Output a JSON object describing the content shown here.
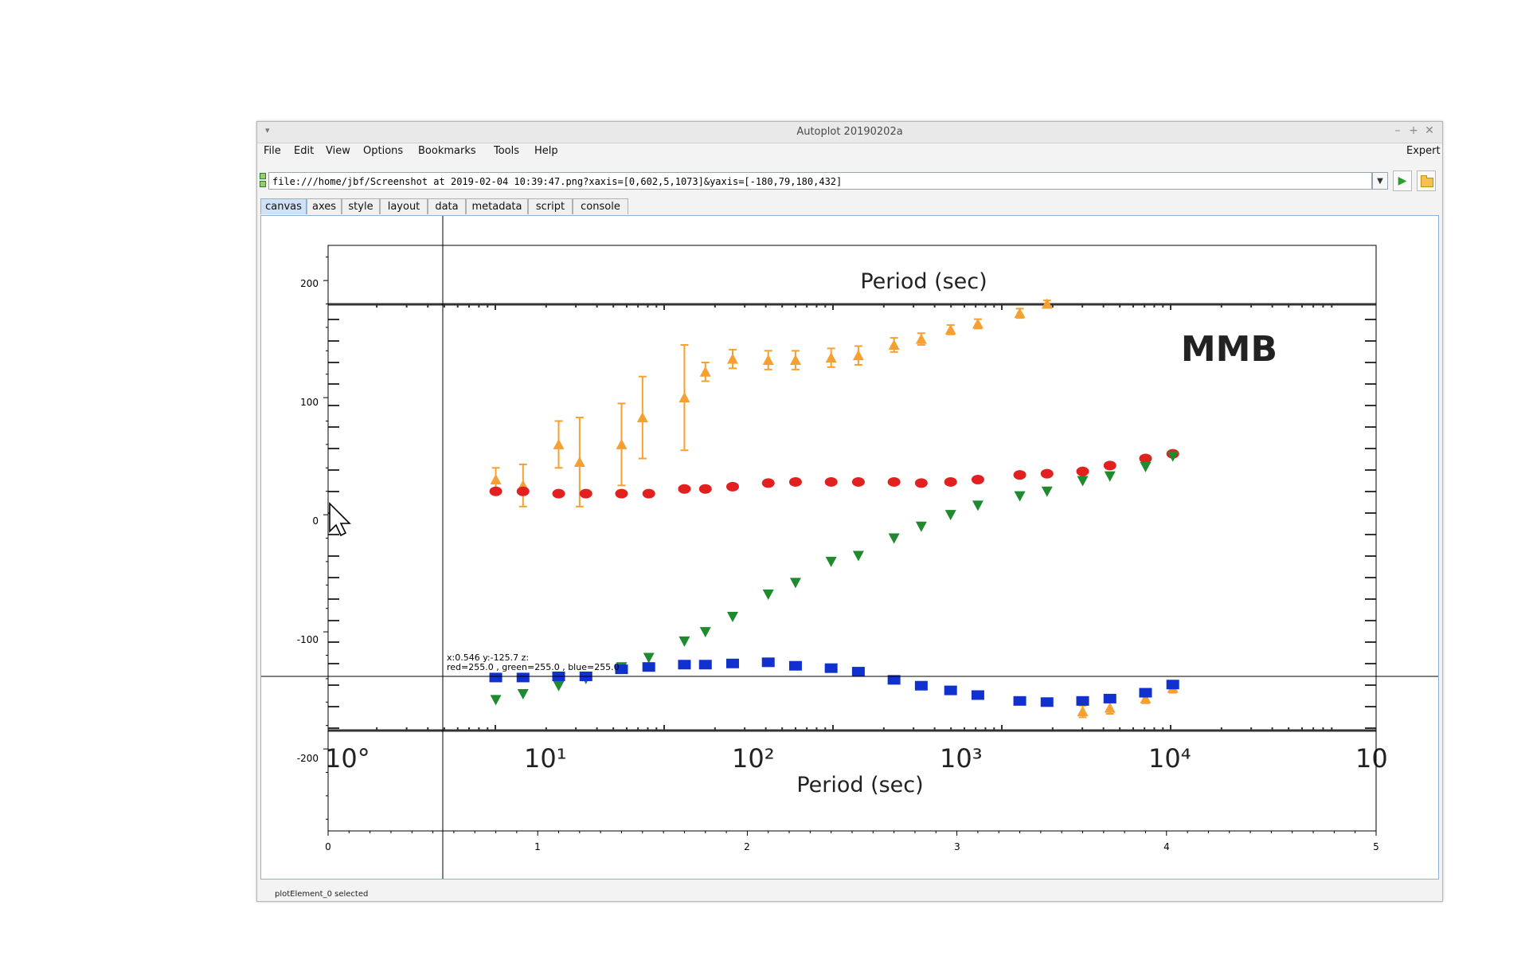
{
  "window": {
    "title": "Autoplot 20190202a",
    "minimize_icon": "minimize-icon",
    "maximize_icon": "maximize-icon",
    "close_icon": "close-icon"
  },
  "menubar": {
    "items": [
      "File",
      "Edit",
      "View",
      "Options",
      "Bookmarks",
      "Tools",
      "Help"
    ],
    "right_item": "Expert"
  },
  "url_bar": {
    "value": "file:///home/jbf/Screenshot at 2019-02-04 10:39:47.png?xaxis=[0,602,5,1073]&yaxis=[-180,79,180,432]",
    "dropdown_icon": "chevron-down-icon",
    "go_icon": "play-icon",
    "browse_icon": "folder-icon"
  },
  "tabs": [
    {
      "label": "canvas",
      "active": true
    },
    {
      "label": "axes",
      "active": false
    },
    {
      "label": "style",
      "active": false
    },
    {
      "label": "layout",
      "active": false
    },
    {
      "label": "data",
      "active": false
    },
    {
      "label": "metadata",
      "active": false
    },
    {
      "label": "script",
      "active": false
    },
    {
      "label": "console",
      "active": false
    }
  ],
  "plot": {
    "x_ticks": [
      "0",
      "1",
      "2",
      "3",
      "4",
      "5"
    ],
    "y_ticks": [
      "200",
      "100",
      "0",
      "-100",
      "-200"
    ],
    "crosshair_readout_line1": "x:0.546  y:-125.7  z:",
    "crosshair_readout_line2": "red=255.0 , green=255.0 , blue=255.0"
  },
  "embedded_image": {
    "top_label": "Period (sec)",
    "bottom_label": "Period (sec)",
    "station": "MMB",
    "x_ticks": [
      "10°",
      "10¹",
      "10²",
      "10³",
      "10⁴",
      "10"
    ],
    "colors": {
      "orange": "#f5a030",
      "red": "#e32020",
      "green": "#1f8a2e",
      "blue": "#1030d0"
    },
    "orange_triangles": [
      [
        0.8,
        30,
        10
      ],
      [
        0.93,
        25,
        18
      ],
      [
        1.1,
        60,
        20
      ],
      [
        1.2,
        45,
        38
      ],
      [
        1.4,
        60,
        35
      ],
      [
        1.5,
        83,
        35
      ],
      [
        1.7,
        100,
        45
      ],
      [
        1.8,
        122,
        8
      ],
      [
        1.93,
        133,
        8
      ],
      [
        2.1,
        132,
        8
      ],
      [
        2.23,
        132,
        8
      ],
      [
        2.4,
        134,
        8
      ],
      [
        2.53,
        136,
        8
      ],
      [
        2.7,
        145,
        6
      ],
      [
        2.83,
        150,
        5
      ],
      [
        2.97,
        158,
        4
      ],
      [
        3.1,
        163,
        4
      ],
      [
        3.3,
        172,
        4
      ],
      [
        3.43,
        180,
        3
      ],
      [
        3.6,
        -168,
        5
      ],
      [
        3.73,
        -165,
        5
      ],
      [
        3.9,
        -157,
        4
      ],
      [
        4.03,
        -148,
        4
      ]
    ],
    "red_circles": [
      [
        0.8,
        20
      ],
      [
        0.93,
        20
      ],
      [
        1.1,
        18
      ],
      [
        1.23,
        18
      ],
      [
        1.4,
        18
      ],
      [
        1.53,
        18
      ],
      [
        1.7,
        22
      ],
      [
        1.8,
        22
      ],
      [
        1.93,
        24
      ],
      [
        2.1,
        27
      ],
      [
        2.23,
        28
      ],
      [
        2.4,
        28
      ],
      [
        2.53,
        28
      ],
      [
        2.7,
        28
      ],
      [
        2.83,
        27
      ],
      [
        2.97,
        28
      ],
      [
        3.1,
        30
      ],
      [
        3.3,
        34
      ],
      [
        3.43,
        35
      ],
      [
        3.6,
        37
      ],
      [
        3.73,
        42
      ],
      [
        3.9,
        48
      ],
      [
        4.03,
        52
      ]
    ],
    "green_triangles": [
      [
        0.8,
        -158
      ],
      [
        0.93,
        -153
      ],
      [
        1.1,
        -146
      ],
      [
        1.23,
        -140
      ],
      [
        1.4,
        -130
      ],
      [
        1.53,
        -122
      ],
      [
        1.7,
        -108
      ],
      [
        1.8,
        -100
      ],
      [
        1.93,
        -87
      ],
      [
        2.1,
        -68
      ],
      [
        2.23,
        -58
      ],
      [
        2.4,
        -40
      ],
      [
        2.53,
        -35
      ],
      [
        2.7,
        -20
      ],
      [
        2.83,
        -10
      ],
      [
        2.97,
        0
      ],
      [
        3.1,
        8
      ],
      [
        3.3,
        16
      ],
      [
        3.43,
        20
      ],
      [
        3.6,
        29
      ],
      [
        3.73,
        33
      ],
      [
        3.9,
        41
      ],
      [
        4.03,
        50
      ]
    ],
    "blue_squares": [
      [
        0.8,
        -139
      ],
      [
        0.93,
        -139
      ],
      [
        1.1,
        -138
      ],
      [
        1.23,
        -138
      ],
      [
        1.4,
        -132
      ],
      [
        1.53,
        -130
      ],
      [
        1.7,
        -128
      ],
      [
        1.8,
        -128
      ],
      [
        1.93,
        -127
      ],
      [
        2.1,
        -126
      ],
      [
        2.23,
        -129
      ],
      [
        2.4,
        -131
      ],
      [
        2.53,
        -134
      ],
      [
        2.7,
        -141
      ],
      [
        2.83,
        -146
      ],
      [
        2.97,
        -150
      ],
      [
        3.1,
        -154
      ],
      [
        3.3,
        -159
      ],
      [
        3.43,
        -160
      ],
      [
        3.6,
        -159
      ],
      [
        3.73,
        -157
      ],
      [
        3.9,
        -152
      ],
      [
        4.03,
        -145
      ]
    ]
  },
  "status": {
    "text": "plotElement_0 selected"
  }
}
